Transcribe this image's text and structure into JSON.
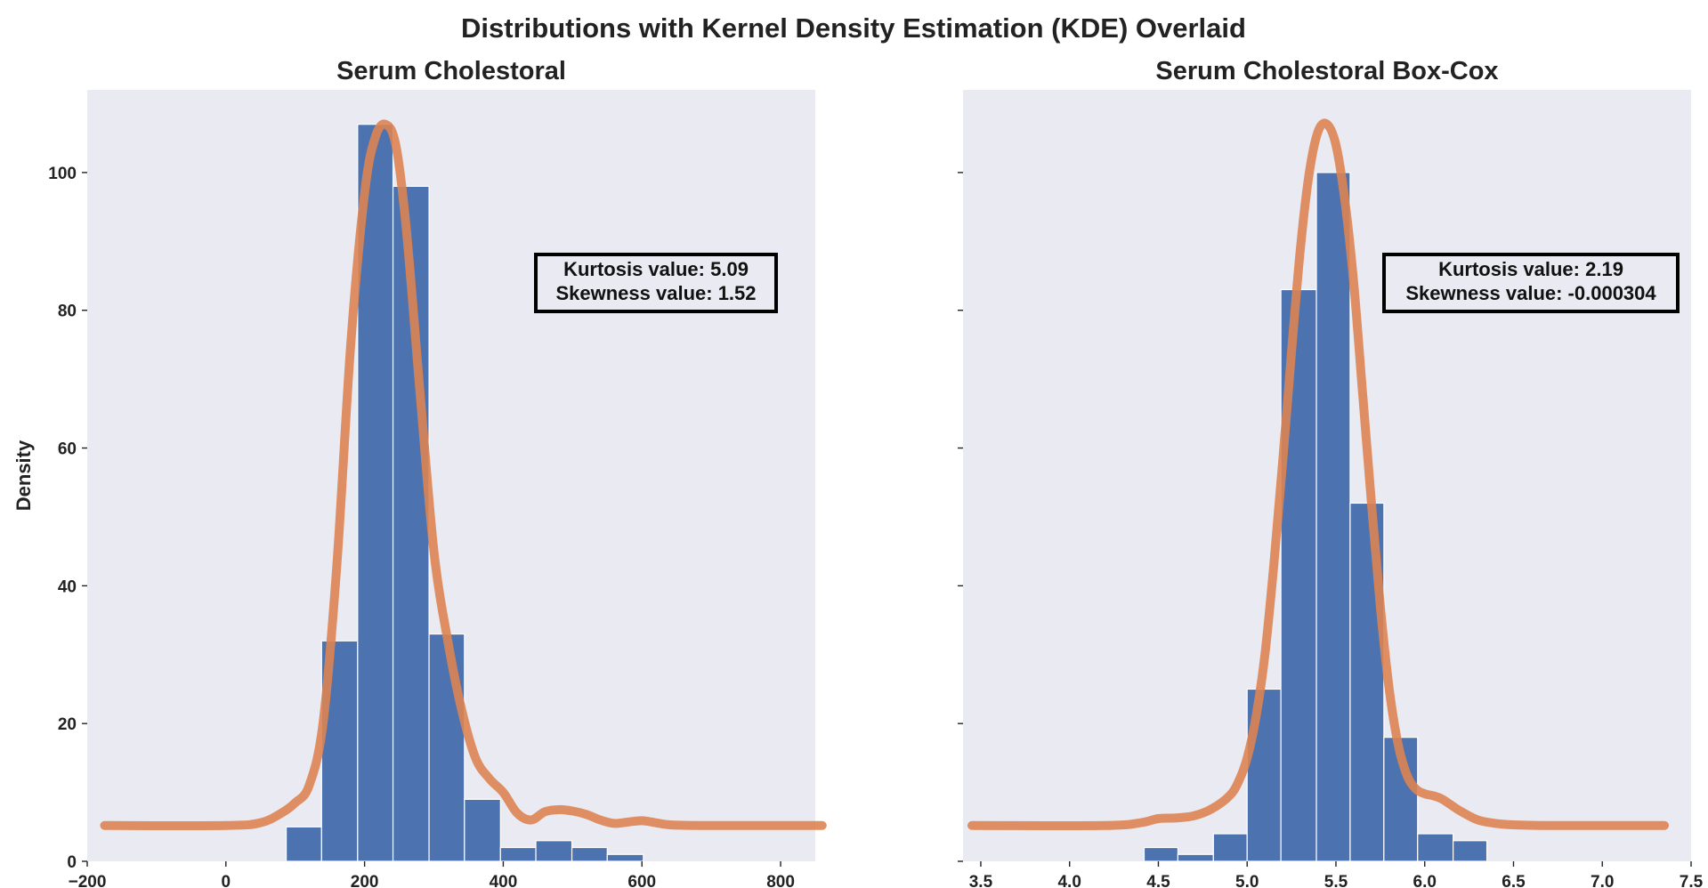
{
  "figure_title": "Distributions with Kernel Density Estimation (KDE) Overlaid",
  "colors": {
    "background": "#eaeaf2",
    "bar_fill": "#4c72b0",
    "bar_edge": "#ffffff",
    "kde_line": "#dd8452",
    "text": "#222222"
  },
  "chart_data": [
    {
      "type": "bar",
      "title": "Serum Cholestoral",
      "xlabel": "",
      "ylabel": "Density",
      "xlim": [
        -200,
        850
      ],
      "ylim": [
        0,
        112
      ],
      "xticks": [
        -200,
        0,
        200,
        400,
        600,
        800
      ],
      "xtick_labels": [
        "−200",
        "0",
        "200",
        "400",
        "600",
        "800"
      ],
      "yticks": [
        0,
        20,
        40,
        60,
        80,
        100
      ],
      "ytick_labels": [
        "0",
        "20",
        "40",
        "60",
        "80",
        "100"
      ],
      "grid": false,
      "bins": [
        {
          "x0": 87,
          "x1": 138,
          "value": 5
        },
        {
          "x0": 138,
          "x1": 190,
          "value": 32
        },
        {
          "x0": 190,
          "x1": 241,
          "value": 107
        },
        {
          "x0": 241,
          "x1": 293,
          "value": 98
        },
        {
          "x0": 293,
          "x1": 344,
          "value": 33
        },
        {
          "x0": 344,
          "x1": 396,
          "value": 9
        },
        {
          "x0": 396,
          "x1": 447,
          "value": 2
        },
        {
          "x0": 447,
          "x1": 499,
          "value": 3
        },
        {
          "x0": 499,
          "x1": 550,
          "value": 2
        },
        {
          "x0": 550,
          "x1": 602,
          "value": 1
        }
      ],
      "kde": {
        "x": [
          -175,
          0,
          50,
          80,
          100,
          120,
          140,
          160,
          180,
          200,
          215,
          230,
          245,
          260,
          280,
          300,
          320,
          340,
          360,
          380,
          400,
          420,
          440,
          460,
          480,
          500,
          520,
          540,
          560,
          580,
          600,
          620,
          640,
          680,
          750,
          860
        ],
        "y": [
          5.2,
          5.2,
          5.6,
          7,
          8.5,
          11,
          20,
          43,
          75,
          97,
          105,
          107,
          104,
          92,
          68,
          45,
          32,
          22,
          15,
          12,
          10,
          7,
          6,
          7.2,
          7.5,
          7.3,
          6.8,
          6.0,
          5.5,
          5.7,
          5.9,
          5.6,
          5.3,
          5.2,
          5.2,
          5.2
        ]
      },
      "annotation": [
        "Kurtosis value: 5.09",
        "Skewness value: 1.52"
      ]
    },
    {
      "type": "bar",
      "title": "Serum Cholestoral Box-Cox",
      "xlabel": "",
      "ylabel": "",
      "xlim": [
        3.4,
        7.5
      ],
      "ylim": [
        0,
        112
      ],
      "xticks": [
        3.5,
        4.0,
        4.5,
        5.0,
        5.5,
        6.0,
        6.5,
        7.0,
        7.5
      ],
      "xtick_labels": [
        "3.5",
        "4.0",
        "4.5",
        "5.0",
        "5.5",
        "6.0",
        "6.5",
        "7.0",
        "7.5"
      ],
      "yticks": [
        0,
        20,
        40,
        60,
        80,
        100
      ],
      "ytick_labels": [],
      "grid": false,
      "bins": [
        {
          "x0": 4.42,
          "x1": 4.61,
          "value": 2
        },
        {
          "x0": 4.61,
          "x1": 4.81,
          "value": 1
        },
        {
          "x0": 4.81,
          "x1": 5.0,
          "value": 4
        },
        {
          "x0": 5.0,
          "x1": 5.19,
          "value": 25
        },
        {
          "x0": 5.19,
          "x1": 5.39,
          "value": 83
        },
        {
          "x0": 5.39,
          "x1": 5.58,
          "value": 100
        },
        {
          "x0": 5.58,
          "x1": 5.77,
          "value": 52
        },
        {
          "x0": 5.77,
          "x1": 5.96,
          "value": 18
        },
        {
          "x0": 5.96,
          "x1": 6.16,
          "value": 4
        },
        {
          "x0": 6.16,
          "x1": 6.35,
          "value": 3
        }
      ],
      "kde": {
        "x": [
          3.45,
          4.2,
          4.4,
          4.5,
          4.6,
          4.7,
          4.8,
          4.9,
          4.95,
          5.0,
          5.05,
          5.1,
          5.15,
          5.2,
          5.25,
          5.3,
          5.35,
          5.4,
          5.45,
          5.5,
          5.55,
          5.6,
          5.65,
          5.7,
          5.75,
          5.8,
          5.85,
          5.9,
          5.95,
          6.0,
          6.05,
          6.1,
          6.2,
          6.3,
          6.4,
          6.5,
          6.7,
          7.0,
          7.35
        ],
        "y": [
          5.2,
          5.2,
          5.6,
          6.2,
          6.3,
          6.6,
          7.6,
          9.5,
          11.5,
          15,
          21,
          30,
          43,
          58,
          74,
          89,
          100,
          106,
          107,
          104,
          96,
          84,
          68,
          52,
          37,
          25,
          17,
          12.5,
          10.5,
          9.8,
          9.5,
          9.0,
          7.3,
          6.0,
          5.5,
          5.3,
          5.2,
          5.2,
          5.2
        ]
      },
      "annotation": [
        "Kurtosis value: 2.19",
        "Skewness value: -0.000304"
      ]
    }
  ]
}
